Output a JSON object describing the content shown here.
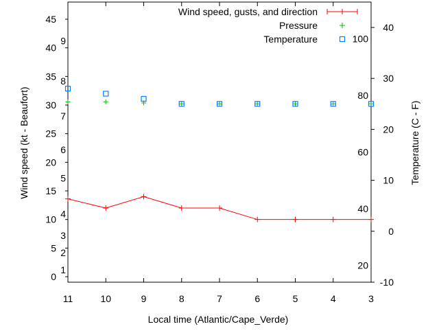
{
  "chart_data": {
    "type": "line",
    "xlabel": "Local time (Atlantic/Cape_Verde)",
    "ylabel": "Wind speed (kt - Beaufort)",
    "y2label": "Temperature (C - F)",
    "x": [
      11,
      10,
      9,
      8,
      7,
      6,
      5,
      4,
      3
    ],
    "x_tick_labels": [
      "11",
      "10",
      "9",
      "8",
      "7",
      "6",
      "5",
      "4",
      "3"
    ],
    "ylim": [
      -1,
      48
    ],
    "y_ticks": [
      0,
      5,
      10,
      15,
      20,
      25,
      30,
      35,
      40,
      45
    ],
    "y2lim": [
      -10,
      45
    ],
    "y2_ticks": [
      -10,
      0,
      10,
      20,
      30,
      40
    ],
    "beaufort_labels": [
      {
        "label": "1",
        "kt": 1.2
      },
      {
        "label": "2",
        "kt": 4.2
      },
      {
        "label": "3",
        "kt": 7.2
      },
      {
        "label": "4",
        "kt": 11
      },
      {
        "label": "5",
        "kt": 17.2
      },
      {
        "label": "6",
        "kt": 22.2
      },
      {
        "label": "7",
        "kt": 28.1
      },
      {
        "label": "8",
        "kt": 34.2
      },
      {
        "label": "9",
        "kt": 41.2
      }
    ],
    "fahrenheit_labels": [
      "20",
      "40",
      "60",
      "80",
      "100"
    ],
    "legend_position": "top-right",
    "series": [
      {
        "name": "Wind speed, gusts, and direction",
        "axis": "y",
        "color": "#ff0000",
        "values": [
          13.6,
          12,
          14,
          12,
          12,
          10,
          10,
          10,
          10
        ]
      },
      {
        "name": "Pressure",
        "axis": "y2",
        "color": "#00c000",
        "values": [
          25.4,
          25.4,
          25.2,
          25,
          25,
          25,
          25,
          25,
          25
        ]
      },
      {
        "name": "Temperature",
        "axis": "y2",
        "color": "#0080ff",
        "values": [
          28,
          27,
          26,
          25,
          25,
          25,
          25,
          25,
          25
        ]
      }
    ]
  }
}
